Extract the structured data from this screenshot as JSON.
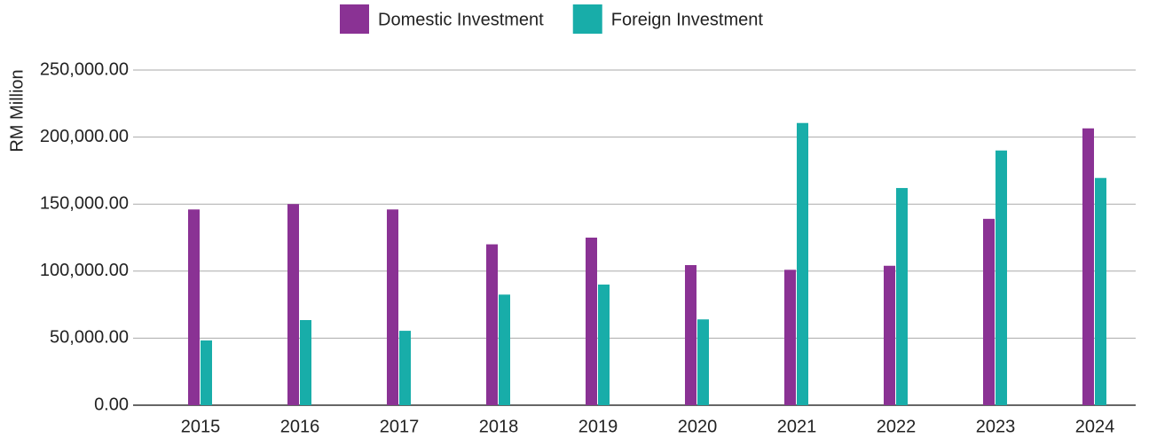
{
  "chart_data": {
    "type": "bar",
    "y_label": "RM Million",
    "categories": [
      "2015",
      "2016",
      "2017",
      "2018",
      "2019",
      "2020",
      "2021",
      "2022",
      "2023",
      "2024"
    ],
    "series": [
      {
        "name": "Domestic Investment",
        "color": "#8a3294",
        "values": [
          146000,
          150000,
          146000,
          120000,
          125000,
          104500,
          101000,
          104000,
          139000,
          206500
        ]
      },
      {
        "name": "Foreign Investment",
        "color": "#18ada9",
        "values": [
          48300,
          63500,
          55500,
          82500,
          90000,
          64000,
          210500,
          162000,
          190000,
          169500
        ]
      }
    ],
    "ylim": [
      0,
      250000
    ],
    "yticks": [
      {
        "value": 0,
        "label": "0.00"
      },
      {
        "value": 50000,
        "label": "50,000.00"
      },
      {
        "value": 100000,
        "label": "100,000.00"
      },
      {
        "value": 150000,
        "label": "150,000.00"
      },
      {
        "value": 200000,
        "label": "200,000.00"
      },
      {
        "value": 250000,
        "label": "250,000.00"
      }
    ],
    "grid": true,
    "legend": "top"
  }
}
